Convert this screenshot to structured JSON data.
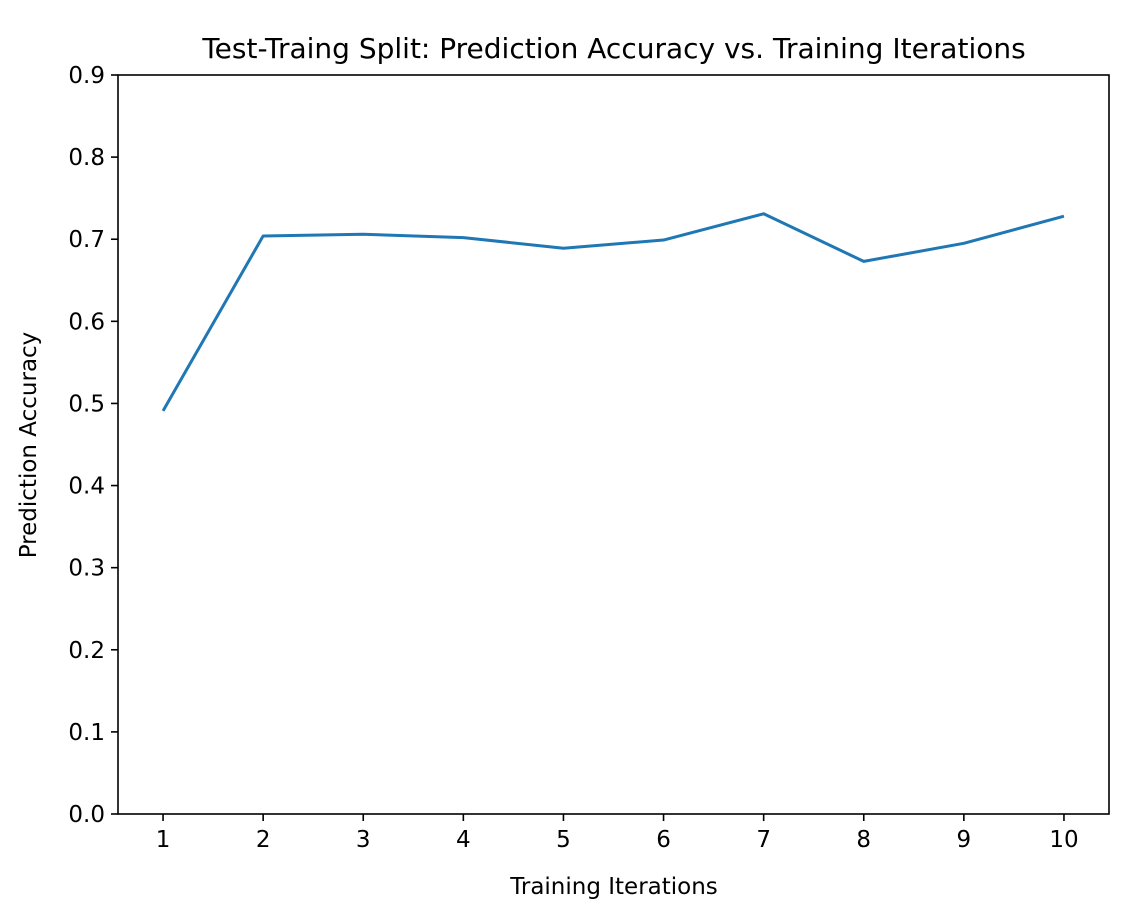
{
  "chart_data": {
    "type": "line",
    "title": "Test-Traing Split: Prediction Accuracy vs. Training Iterations",
    "xlabel": "Training Iterations",
    "ylabel": "Prediction Accuracy",
    "x": [
      1,
      2,
      3,
      4,
      5,
      6,
      7,
      8,
      9,
      10
    ],
    "x_tick_labels": [
      "1",
      "2",
      "3",
      "4",
      "5",
      "6",
      "7",
      "8",
      "9",
      "10"
    ],
    "y_ticks": [
      0.0,
      0.1,
      0.2,
      0.3,
      0.4,
      0.5,
      0.6,
      0.7,
      0.8,
      0.9
    ],
    "y_tick_labels": [
      "0.0",
      "0.1",
      "0.2",
      "0.3",
      "0.4",
      "0.5",
      "0.6",
      "0.7",
      "0.8",
      "0.9"
    ],
    "ylim": [
      0.0,
      0.9
    ],
    "xlim": [
      0.55,
      10.45
    ],
    "grid": false,
    "series": [
      {
        "values": [
          0.491,
          0.704,
          0.706,
          0.702,
          0.689,
          0.699,
          0.731,
          0.673,
          0.695,
          0.728
        ],
        "color": "#1f77b4"
      }
    ]
  }
}
